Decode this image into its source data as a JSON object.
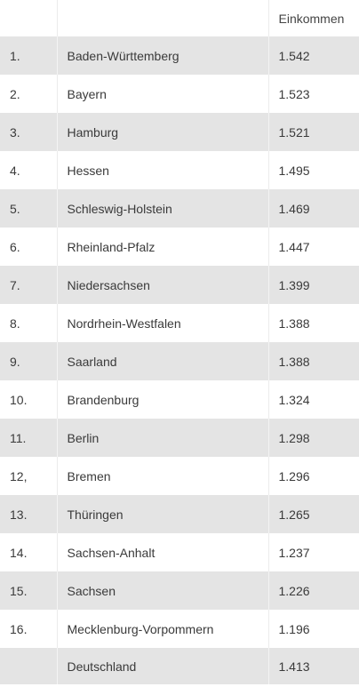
{
  "table": {
    "headers": [
      "",
      "",
      "Einkommen"
    ],
    "rows": [
      {
        "rank": "1.",
        "state": "Baden-Württemberg",
        "income": "1.542"
      },
      {
        "rank": "2.",
        "state": "Bayern",
        "income": "1.523"
      },
      {
        "rank": "3.",
        "state": "Hamburg",
        "income": "1.521"
      },
      {
        "rank": "4.",
        "state": "Hessen",
        "income": "1.495"
      },
      {
        "rank": "5.",
        "state": "Schleswig-Holstein",
        "income": "1.469"
      },
      {
        "rank": "6.",
        "state": "Rheinland-Pfalz",
        "income": "1.447"
      },
      {
        "rank": "7.",
        "state": "Niedersachsen",
        "income": "1.399"
      },
      {
        "rank": "8.",
        "state": "Nordrhein-Westfalen",
        "income": "1.388"
      },
      {
        "rank": "9.",
        "state": "Saarland",
        "income": "1.388"
      },
      {
        "rank": "10.",
        "state": "Brandenburg",
        "income": "1.324"
      },
      {
        "rank": "11.",
        "state": "Berlin",
        "income": "1.298"
      },
      {
        "rank": "12,",
        "state": "Bremen",
        "income": "1.296"
      },
      {
        "rank": "13.",
        "state": "Thüringen",
        "income": "1.265"
      },
      {
        "rank": "14.",
        "state": "Sachsen-Anhalt",
        "income": "1.237"
      },
      {
        "rank": "15.",
        "state": "Sachsen",
        "income": "1.226"
      },
      {
        "rank": "16.",
        "state": "Mecklenburg-Vorpommern",
        "income": "1.196"
      },
      {
        "rank": "",
        "state": "Deutschland",
        "income": "1.413"
      }
    ]
  }
}
